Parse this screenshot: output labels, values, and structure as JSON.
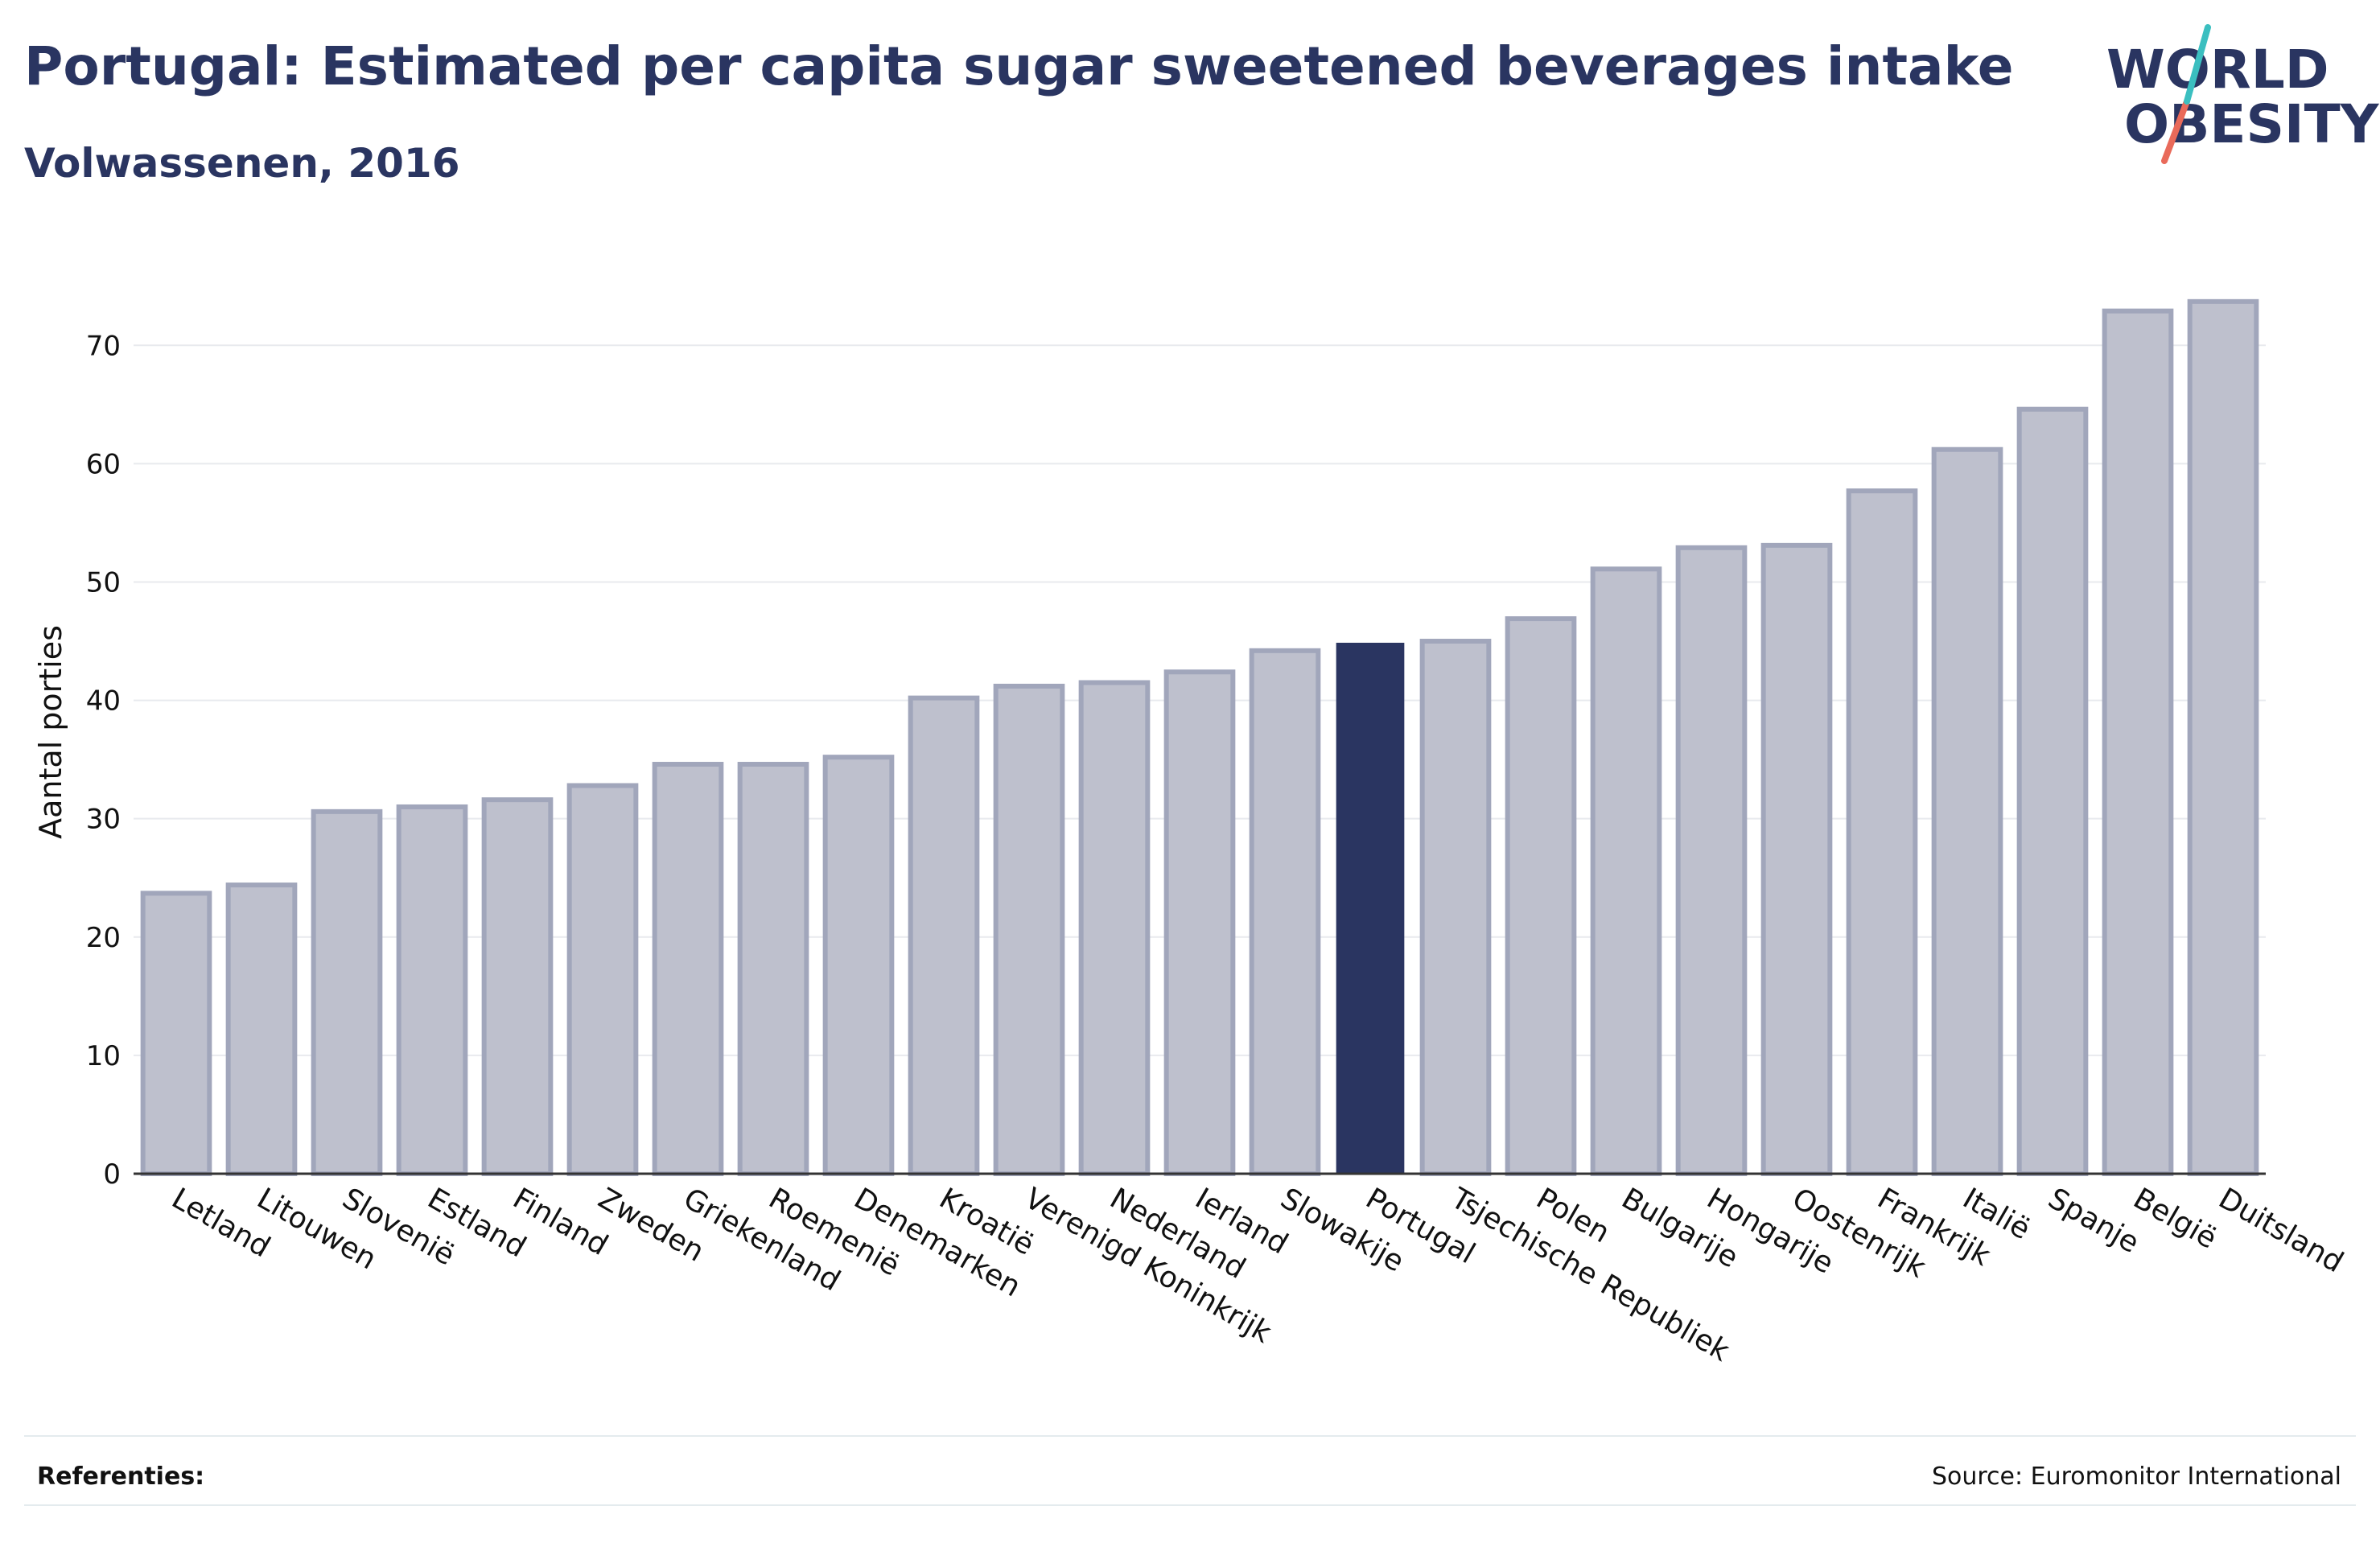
{
  "header": {
    "title": "Portugal: Estimated per capita sugar sweetened beverages intake",
    "subtitle": "Volwassenen, 2016"
  },
  "logo": {
    "line1": "WORLD",
    "line2": "OBESITY",
    "slash_colors": [
      "#3bbfc0",
      "#e96a5a"
    ]
  },
  "footer": {
    "references_label": "Referenties:",
    "source": "Source: Euromonitor International"
  },
  "colors": {
    "bar": "#bec0cd",
    "bar_border": "#a1a6bb",
    "highlight": "#2a3561",
    "grid": "#e8eaee",
    "axis": "#333333"
  },
  "chart_data": {
    "type": "bar",
    "title": "Portugal: Estimated per capita sugar sweetened beverages intake",
    "subtitle": "Volwassenen, 2016",
    "xlabel": "",
    "ylabel": "Aantal porties",
    "ylim": [
      0,
      76
    ],
    "yticks": [
      0,
      10,
      20,
      30,
      40,
      50,
      60,
      70
    ],
    "grid": true,
    "highlight": "Portugal",
    "categories": [
      "Letland",
      "Litouwen",
      "Slovenië",
      "Estland",
      "Finland",
      "Zweden",
      "Griekenland",
      "Roemenië",
      "Denemarken",
      "Kroatië",
      "Verenigd Koninkrijk",
      "Nederland",
      "Ierland",
      "Slowakije",
      "Portugal",
      "Tsjechische Republiek",
      "Polen",
      "Bulgarije",
      "Hongarije",
      "Oostenrijk",
      "Frankrijk",
      "Italië",
      "Spanje",
      "België",
      "Duitsland"
    ],
    "values": [
      23.7,
      24.4,
      30.6,
      31.0,
      31.6,
      32.8,
      34.6,
      34.6,
      35.2,
      40.2,
      41.2,
      41.5,
      42.4,
      44.2,
      44.8,
      45.0,
      46.9,
      51.1,
      52.9,
      53.1,
      57.7,
      61.2,
      64.6,
      72.9,
      73.7
    ]
  }
}
